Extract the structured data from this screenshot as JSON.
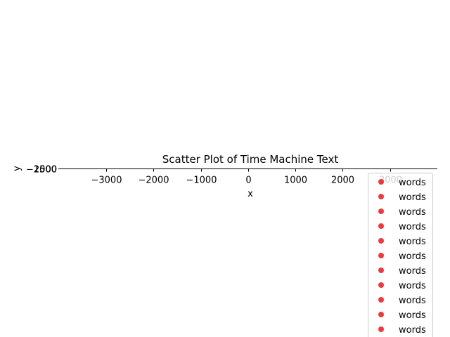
{
  "chart_data": {
    "type": "scatter",
    "title": "Scatter Plot of Time Machine Text",
    "xlabel": "x",
    "ylabel": "y",
    "xlim": [
      -3950,
      4000
    ],
    "x_ticks": [
      -3000,
      -2000,
      -1000,
      0,
      1000,
      2000,
      3000
    ],
    "x_tick_labels": [
      "−3000",
      "−2000",
      "−1000",
      "0",
      "1000",
      "2000",
      "3000"
    ],
    "y_tick_labels": [
      "2500",
      "2000",
      "1500",
      "−2500"
    ],
    "grid": false,
    "legend_placement": "lower right (extends below plot)",
    "marker_color": "#e8191d",
    "marker_alpha": 0.85,
    "series": [
      {
        "name": "words"
      },
      {
        "name": "words"
      },
      {
        "name": "words"
      },
      {
        "name": "words"
      },
      {
        "name": "words"
      },
      {
        "name": "words"
      },
      {
        "name": "words"
      },
      {
        "name": "words"
      },
      {
        "name": "words"
      },
      {
        "name": "words"
      },
      {
        "name": "words"
      }
    ]
  }
}
